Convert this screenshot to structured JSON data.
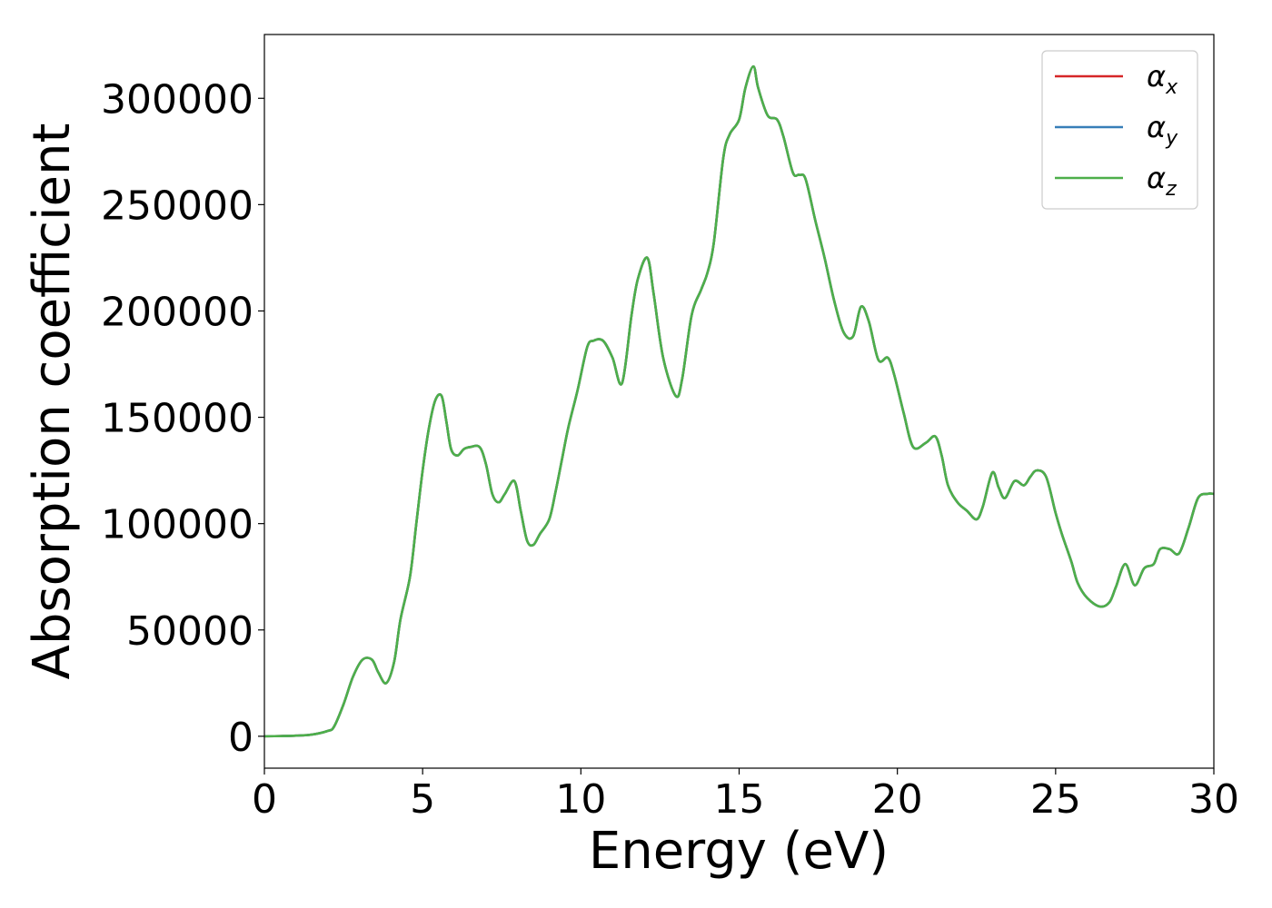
{
  "chart_data": {
    "type": "line",
    "title": "",
    "xlabel": "Energy (eV)",
    "ylabel": "Absorption coefficient",
    "xlim": [
      0,
      30
    ],
    "ylim": [
      -15000,
      330000
    ],
    "xticks": [
      0,
      5,
      10,
      15,
      20,
      25,
      30
    ],
    "yticks": [
      0,
      50000,
      100000,
      150000,
      200000,
      250000,
      300000
    ],
    "xtick_labels": [
      "0",
      "5",
      "10",
      "15",
      "20",
      "25",
      "30"
    ],
    "ytick_labels": [
      "0",
      "50000",
      "100000",
      "150000",
      "200000",
      "250000",
      "300000"
    ],
    "grid": false,
    "legend_position": "top-right",
    "series": [
      {
        "name": "αx",
        "symbol": "α",
        "subscript": "x",
        "color": "#d62728",
        "x": [
          0,
          0.5,
          1,
          1.5,
          2,
          2.2,
          2.5,
          2.8,
          3.1,
          3.4,
          3.6,
          3.85,
          4.1,
          4.3,
          4.6,
          4.8,
          5,
          5.2,
          5.4,
          5.6,
          5.75,
          5.9,
          6.1,
          6.3,
          6.5,
          6.8,
          7,
          7.2,
          7.4,
          7.6,
          7.9,
          8.1,
          8.3,
          8.5,
          8.7,
          9,
          9.2,
          9.4,
          9.6,
          9.9,
          10.2,
          10.4,
          10.7,
          11,
          11.3,
          11.6,
          11.8,
          12.1,
          12.3,
          12.6,
          13,
          13.2,
          13.5,
          13.8,
          14,
          14.2,
          14.5,
          14.7,
          15,
          15.2,
          15.45,
          15.6,
          15.9,
          16.2,
          16.4,
          16.7,
          16.9,
          17.1,
          17.4,
          17.7,
          18,
          18.3,
          18.6,
          18.85,
          19.1,
          19.4,
          19.7,
          19.9,
          20.2,
          20.5,
          20.9,
          21.2,
          21.4,
          21.6,
          21.9,
          22.2,
          22.5,
          22.7,
          23,
          23.2,
          23.4,
          23.7,
          24,
          24.2,
          24.4,
          24.7,
          25,
          25.2,
          25.5,
          25.7,
          26,
          26.4,
          26.7,
          26.9,
          27.2,
          27.5,
          27.8,
          28.1,
          28.3,
          28.6,
          28.9,
          29.2,
          29.5,
          29.8,
          30
        ],
        "y": [
          0,
          100,
          300,
          800,
          2500,
          4500,
          15000,
          28000,
          36000,
          36000,
          30000,
          25000,
          35000,
          55000,
          75000,
          100000,
          125000,
          145000,
          158000,
          160000,
          148000,
          135000,
          132000,
          135000,
          136000,
          136000,
          128000,
          114000,
          110000,
          114000,
          120000,
          106000,
          92000,
          90000,
          95000,
          102000,
          115000,
          130000,
          145000,
          163000,
          183000,
          186000,
          186000,
          178000,
          166000,
          198000,
          215000,
          225000,
          208000,
          178000,
          160000,
          168000,
          198000,
          210000,
          218000,
          232000,
          272000,
          283000,
          290000,
          305000,
          315000,
          305000,
          292000,
          290000,
          282000,
          265000,
          264000,
          262000,
          243000,
          225000,
          205000,
          190000,
          188000,
          202000,
          195000,
          177000,
          178000,
          170000,
          152000,
          136000,
          138000,
          141000,
          132000,
          118000,
          110000,
          106000,
          102000,
          108000,
          124000,
          117000,
          112000,
          120000,
          118000,
          122000,
          125000,
          122000,
          105000,
          95000,
          82000,
          72000,
          65000,
          61000,
          63000,
          70000,
          81000,
          71000,
          79000,
          81000,
          88000,
          88000,
          86000,
          98000,
          112000,
          114000,
          114000
        ]
      },
      {
        "name": "αy",
        "symbol": "α",
        "subscript": "y",
        "color": "#377eb8",
        "x": [
          0,
          0.5,
          1,
          1.5,
          2,
          2.2,
          2.5,
          2.8,
          3.1,
          3.4,
          3.6,
          3.85,
          4.1,
          4.3,
          4.6,
          4.8,
          5,
          5.2,
          5.4,
          5.6,
          5.75,
          5.9,
          6.1,
          6.3,
          6.5,
          6.8,
          7,
          7.2,
          7.4,
          7.6,
          7.9,
          8.1,
          8.3,
          8.5,
          8.7,
          9,
          9.2,
          9.4,
          9.6,
          9.9,
          10.2,
          10.4,
          10.7,
          11,
          11.3,
          11.6,
          11.8,
          12.1,
          12.3,
          12.6,
          13,
          13.2,
          13.5,
          13.8,
          14,
          14.2,
          14.5,
          14.7,
          15,
          15.2,
          15.45,
          15.6,
          15.9,
          16.2,
          16.4,
          16.7,
          16.9,
          17.1,
          17.4,
          17.7,
          18,
          18.3,
          18.6,
          18.85,
          19.1,
          19.4,
          19.7,
          19.9,
          20.2,
          20.5,
          20.9,
          21.2,
          21.4,
          21.6,
          21.9,
          22.2,
          22.5,
          22.7,
          23,
          23.2,
          23.4,
          23.7,
          24,
          24.2,
          24.4,
          24.7,
          25,
          25.2,
          25.5,
          25.7,
          26,
          26.4,
          26.7,
          26.9,
          27.2,
          27.5,
          27.8,
          28.1,
          28.3,
          28.6,
          28.9,
          29.2,
          29.5,
          29.8,
          30
        ],
        "y": [
          0,
          100,
          300,
          800,
          2500,
          4500,
          15000,
          28000,
          36000,
          36000,
          30000,
          25000,
          35000,
          55000,
          75000,
          100000,
          125000,
          145000,
          158000,
          160000,
          148000,
          135000,
          132000,
          135000,
          136000,
          136000,
          128000,
          114000,
          110000,
          114000,
          120000,
          106000,
          92000,
          90000,
          95000,
          102000,
          115000,
          130000,
          145000,
          163000,
          183000,
          186000,
          186000,
          178000,
          166000,
          198000,
          215000,
          225000,
          208000,
          178000,
          160000,
          168000,
          198000,
          210000,
          218000,
          232000,
          272000,
          283000,
          290000,
          305000,
          315000,
          305000,
          292000,
          290000,
          282000,
          265000,
          264000,
          262000,
          243000,
          225000,
          205000,
          190000,
          188000,
          202000,
          195000,
          177000,
          178000,
          170000,
          152000,
          136000,
          138000,
          141000,
          132000,
          118000,
          110000,
          106000,
          102000,
          108000,
          124000,
          117000,
          112000,
          120000,
          118000,
          122000,
          125000,
          122000,
          105000,
          95000,
          82000,
          72000,
          65000,
          61000,
          63000,
          70000,
          81000,
          71000,
          79000,
          81000,
          88000,
          88000,
          86000,
          98000,
          112000,
          114000,
          114000
        ]
      },
      {
        "name": "αz",
        "symbol": "α",
        "subscript": "z",
        "color": "#4daf4a",
        "x": [
          0,
          0.5,
          1,
          1.5,
          2,
          2.2,
          2.5,
          2.8,
          3.1,
          3.4,
          3.6,
          3.85,
          4.1,
          4.3,
          4.6,
          4.8,
          5,
          5.2,
          5.4,
          5.6,
          5.75,
          5.9,
          6.1,
          6.3,
          6.5,
          6.8,
          7,
          7.2,
          7.4,
          7.6,
          7.9,
          8.1,
          8.3,
          8.5,
          8.7,
          9,
          9.2,
          9.4,
          9.6,
          9.9,
          10.2,
          10.4,
          10.7,
          11,
          11.3,
          11.6,
          11.8,
          12.1,
          12.3,
          12.6,
          13,
          13.2,
          13.5,
          13.8,
          14,
          14.2,
          14.5,
          14.7,
          15,
          15.2,
          15.45,
          15.6,
          15.9,
          16.2,
          16.4,
          16.7,
          16.9,
          17.1,
          17.4,
          17.7,
          18,
          18.3,
          18.6,
          18.85,
          19.1,
          19.4,
          19.7,
          19.9,
          20.2,
          20.5,
          20.9,
          21.2,
          21.4,
          21.6,
          21.9,
          22.2,
          22.5,
          22.7,
          23,
          23.2,
          23.4,
          23.7,
          24,
          24.2,
          24.4,
          24.7,
          25,
          25.2,
          25.5,
          25.7,
          26,
          26.4,
          26.7,
          26.9,
          27.2,
          27.5,
          27.8,
          28.1,
          28.3,
          28.6,
          28.9,
          29.2,
          29.5,
          29.8,
          30
        ],
        "y": [
          0,
          100,
          300,
          800,
          2500,
          4500,
          15000,
          28000,
          36000,
          36000,
          30000,
          25000,
          35000,
          55000,
          75000,
          100000,
          125000,
          145000,
          158000,
          160000,
          148000,
          135000,
          132000,
          135000,
          136000,
          136000,
          128000,
          114000,
          110000,
          114000,
          120000,
          106000,
          92000,
          90000,
          95000,
          102000,
          115000,
          130000,
          145000,
          163000,
          183000,
          186000,
          186000,
          178000,
          166000,
          198000,
          215000,
          225000,
          208000,
          178000,
          160000,
          168000,
          198000,
          210000,
          218000,
          232000,
          272000,
          283000,
          290000,
          305000,
          315000,
          305000,
          292000,
          290000,
          282000,
          265000,
          264000,
          262000,
          243000,
          225000,
          205000,
          190000,
          188000,
          202000,
          195000,
          177000,
          178000,
          170000,
          152000,
          136000,
          138000,
          141000,
          132000,
          118000,
          110000,
          106000,
          102000,
          108000,
          124000,
          117000,
          112000,
          120000,
          118000,
          122000,
          125000,
          122000,
          105000,
          95000,
          82000,
          72000,
          65000,
          61000,
          63000,
          70000,
          81000,
          71000,
          79000,
          81000,
          88000,
          88000,
          86000,
          98000,
          112000,
          114000,
          114000
        ]
      }
    ]
  }
}
